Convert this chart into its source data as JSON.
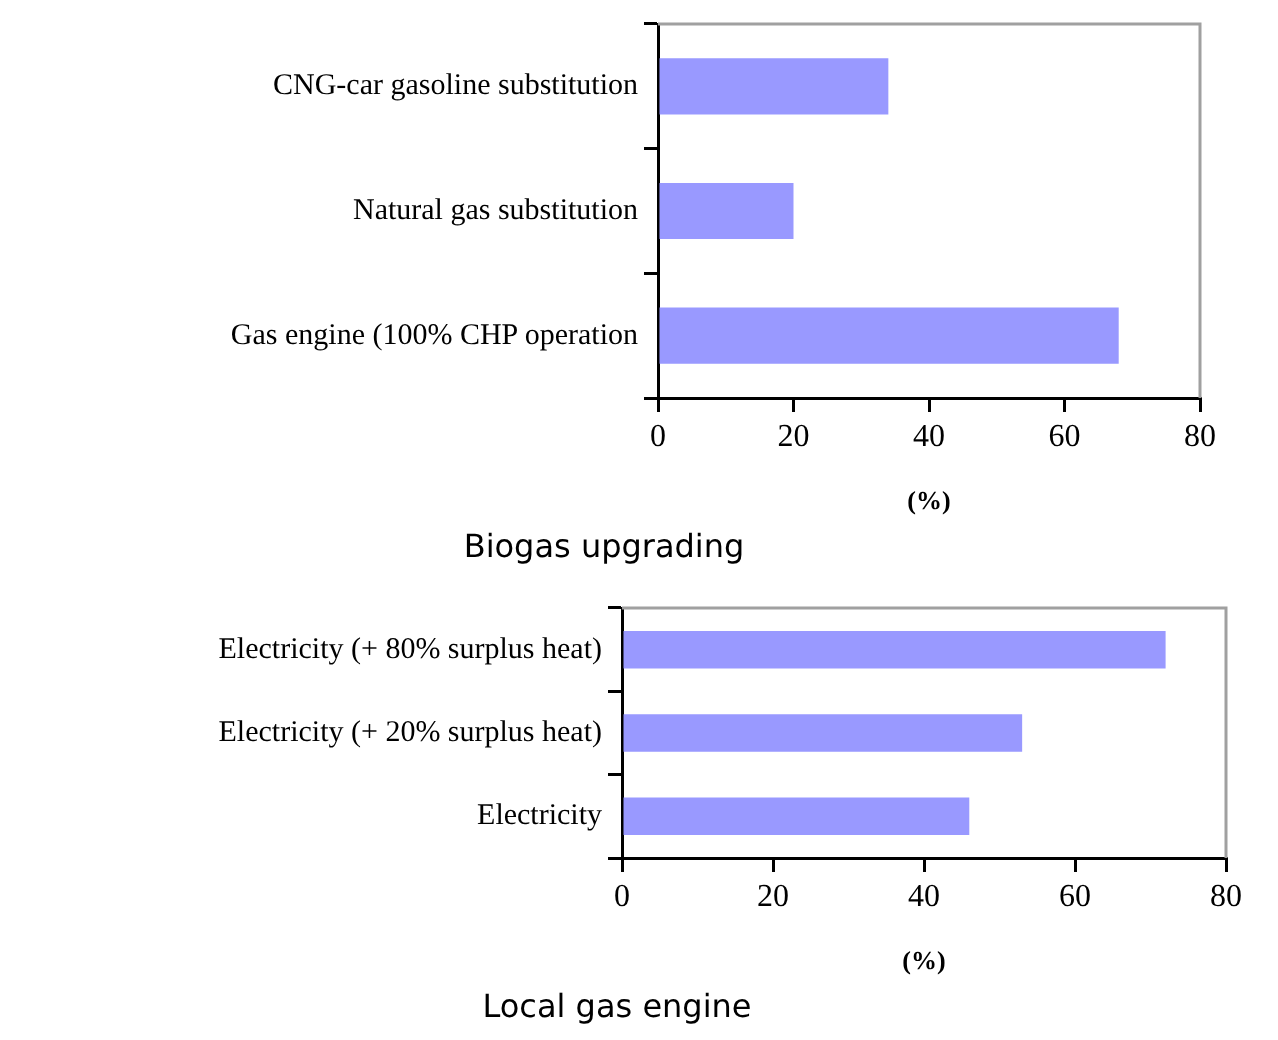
{
  "chart_data": [
    {
      "type": "bar",
      "orientation": "horizontal",
      "title": "Biogas upgrading",
      "xlabel": "(%)",
      "categories": [
        "CNG-car gasoline substitution",
        "Natural gas substitution",
        "Gas engine (100% CHP operation"
      ],
      "values": [
        34,
        20,
        68
      ],
      "color": "#9999ff",
      "xlim": [
        0,
        80
      ],
      "xticks": [
        0,
        20,
        40,
        60,
        80
      ],
      "grid": false,
      "legend": false
    },
    {
      "type": "bar",
      "orientation": "horizontal",
      "title": "Local gas engine",
      "xlabel": "(%)",
      "categories": [
        "Electricity (+ 80% surplus heat)",
        "Electricity (+ 20% surplus heat)",
        "Electricity"
      ],
      "values": [
        72,
        53,
        46
      ],
      "color": "#9999ff",
      "xlim": [
        0,
        80
      ],
      "xticks": [
        0,
        20,
        40,
        60,
        80
      ],
      "grid": false,
      "legend": false
    }
  ]
}
